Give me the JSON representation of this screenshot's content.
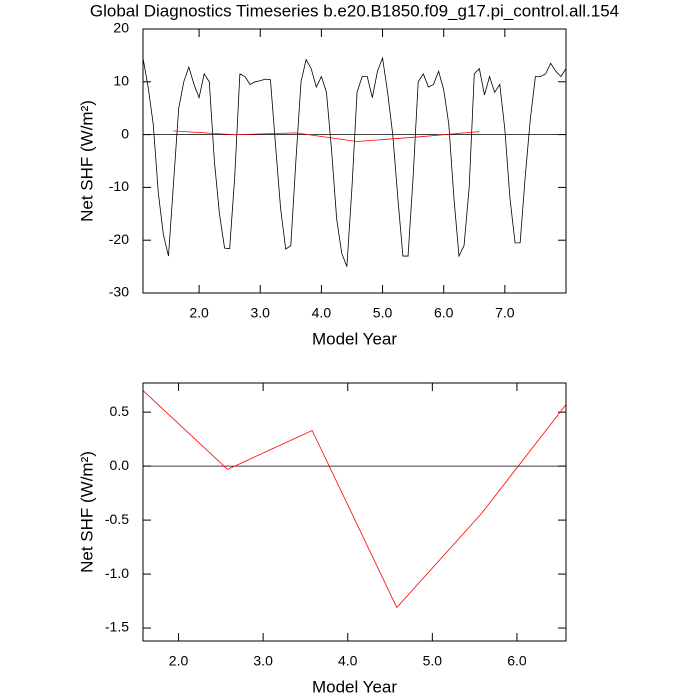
{
  "chart_data": [
    {
      "type": "line",
      "title": "Global Diagnostics Timeseries b.e20.B1850.f09_g17.pi_control.all.154",
      "x_label": "Model Year",
      "y_label": "Net SHF (W/m²)",
      "xlim": [
        1.083,
        8.0
      ],
      "ylim": [
        -30,
        20
      ],
      "xticks": [
        {
          "value": 2,
          "label": "2.0"
        },
        {
          "value": 3,
          "label": "3.0"
        },
        {
          "value": 4,
          "label": "4.0"
        },
        {
          "value": 5,
          "label": "5.0"
        },
        {
          "value": 6,
          "label": "6.0"
        },
        {
          "value": 7,
          "label": "7.0"
        }
      ],
      "yticks": [
        20,
        10,
        0,
        -10,
        -20,
        -30
      ],
      "reference_line": 0,
      "series": [
        {
          "color": "#000000",
          "x": [
            1.083,
            1.167,
            1.25,
            1.333,
            1.417,
            1.5,
            1.583,
            1.667,
            1.75,
            1.833,
            1.917,
            2.0,
            2.083,
            2.167,
            2.25,
            2.333,
            2.417,
            2.5,
            2.583,
            2.667,
            2.75,
            2.833,
            2.917,
            3.0,
            3.083,
            3.167,
            3.25,
            3.333,
            3.417,
            3.5,
            3.583,
            3.667,
            3.75,
            3.833,
            3.917,
            4.0,
            4.083,
            4.167,
            4.25,
            4.333,
            4.417,
            4.5,
            4.583,
            4.667,
            4.75,
            4.833,
            4.917,
            5.0,
            5.083,
            5.167,
            5.25,
            5.333,
            5.417,
            5.5,
            5.583,
            5.667,
            5.75,
            5.833,
            5.917,
            6.0,
            6.083,
            6.167,
            6.25,
            6.333,
            6.417,
            6.5,
            6.583,
            6.667,
            6.75,
            6.833,
            6.917,
            7.0,
            7.083,
            7.167,
            7.25,
            7.333,
            7.417,
            7.5,
            7.583,
            7.667,
            7.75,
            7.833,
            7.917,
            8.0
          ],
          "values": [
            14.5,
            9,
            2,
            -11,
            -19,
            -23,
            -9,
            5,
            10,
            12.8,
            9.5,
            7,
            11.5,
            10,
            -5,
            -15,
            -21.5,
            -21.6,
            -8,
            11.5,
            11,
            9.5,
            10,
            10.2,
            10.5,
            10.4,
            -2,
            -14,
            -21.7,
            -21,
            -5,
            10,
            14.2,
            12.5,
            9,
            11,
            8,
            -3,
            -16,
            -22.5,
            -25,
            -10,
            8,
            11,
            11,
            7,
            12,
            14.5,
            8,
            0,
            -12,
            -23,
            -23,
            -8,
            10,
            11.5,
            9,
            9.5,
            12,
            8.5,
            2,
            -12,
            -23,
            -21,
            -10,
            11.5,
            12.5,
            7.5,
            11,
            8,
            9.5,
            1,
            -12,
            -20.5,
            -20.5,
            -8,
            3,
            11,
            11,
            11.5,
            13.5,
            12,
            11,
            12.5
          ]
        },
        {
          "color": "#ff0000",
          "x": [
            1.58,
            2.58,
            3.58,
            4.58,
            5.58,
            6.58
          ],
          "values": [
            0.7,
            -0.03,
            0.33,
            -1.31,
            -0.44,
            0.57
          ]
        }
      ]
    },
    {
      "type": "line",
      "x_label": "Model Year",
      "y_label": "Net SHF (W/m²)",
      "xlim": [
        1.58,
        6.58
      ],
      "ylim": [
        -1.62,
        0.77
      ],
      "xticks": [
        {
          "value": 2,
          "label": "2.0"
        },
        {
          "value": 3,
          "label": "3.0"
        },
        {
          "value": 4,
          "label": "4.0"
        },
        {
          "value": 5,
          "label": "5.0"
        },
        {
          "value": 6,
          "label": "6.0"
        }
      ],
      "yticks": [
        0.5,
        {
          "value": 0,
          "label": "0.0"
        },
        -0.5,
        {
          "value": -1,
          "label": "-1.0"
        },
        -1.5
      ],
      "reference_line": 0,
      "series": [
        {
          "color": "#ff0000",
          "x": [
            1.58,
            2.58,
            3.58,
            4.58,
            5.58,
            6.58
          ],
          "values": [
            0.7,
            -0.03,
            0.33,
            -1.31,
            -0.44,
            0.57
          ]
        }
      ]
    }
  ]
}
